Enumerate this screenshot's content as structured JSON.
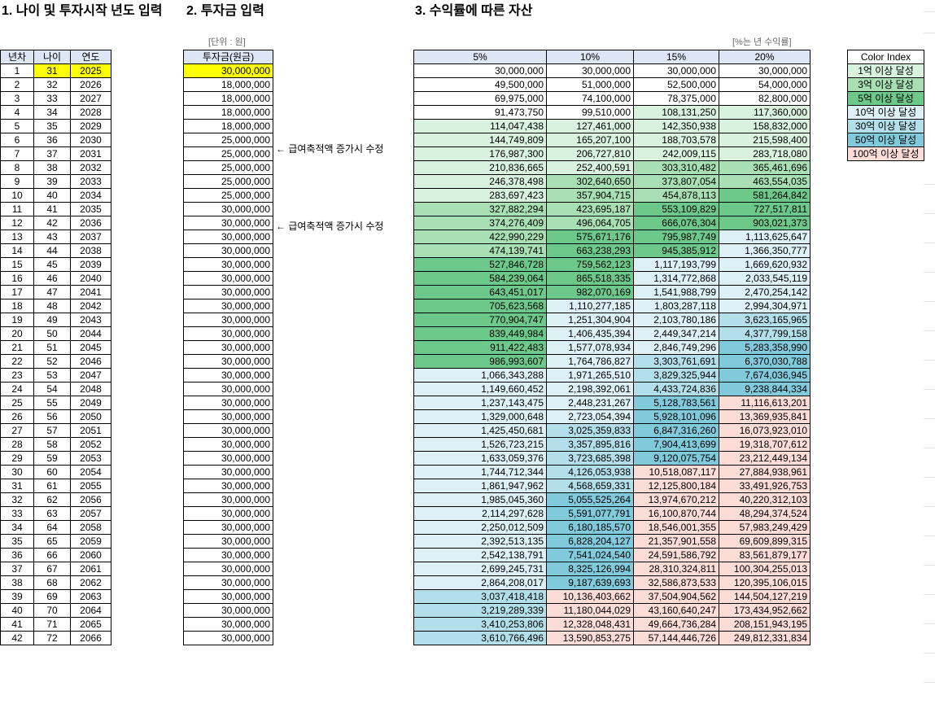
{
  "titles": {
    "age_section": "1. 나이 및 투자시작 년도 입력",
    "invest_section": "2. 투자금 입력",
    "returns_section": "3. 수익률에 따른 자산"
  },
  "units": {
    "invest": "[단위 : 원]",
    "returns": "[%는 년 수익률]"
  },
  "age_table": {
    "headers": [
      "년차",
      "나이",
      "연도"
    ]
  },
  "invest_table": {
    "header": "투자금(원금)"
  },
  "notes": {
    "row6": "← 급여축적액 증가시 수정",
    "row11": "← 급여축적액 증가시 수정"
  },
  "returns_table": {
    "headers": [
      "5%",
      "10%",
      "15%",
      "20%"
    ]
  },
  "legend": {
    "title": "Color Index",
    "items": [
      {
        "label": "1억 이상 달성",
        "color": "#d9f2dd"
      },
      {
        "label": "3억 이상 달성",
        "color": "#a8e0b4"
      },
      {
        "label": "5억 이상 달성",
        "color": "#6dc98a"
      },
      {
        "label": "10억 이상 달성",
        "color": "#ddf0f6"
      },
      {
        "label": "30억 이상 달성",
        "color": "#b2dfea"
      },
      {
        "label": "50억 이상 달성",
        "color": "#80cadc"
      },
      {
        "label": "100억 이상 달성",
        "color": "#fbdcd6"
      }
    ]
  },
  "rows": [
    {
      "year": "1",
      "age": "31",
      "cal": "2025",
      "inv": "30,000,000",
      "r5": "30,000,000",
      "r10": "30,000,000",
      "r15": "30,000,000",
      "r20": "30,000,000"
    },
    {
      "year": "2",
      "age": "32",
      "cal": "2026",
      "inv": "18,000,000",
      "r5": "49,500,000",
      "r10": "51,000,000",
      "r15": "52,500,000",
      "r20": "54,000,000"
    },
    {
      "year": "3",
      "age": "33",
      "cal": "2027",
      "inv": "18,000,000",
      "r5": "69,975,000",
      "r10": "74,100,000",
      "r15": "78,375,000",
      "r20": "82,800,000"
    },
    {
      "year": "4",
      "age": "34",
      "cal": "2028",
      "inv": "18,000,000",
      "r5": "91,473,750",
      "r10": "99,510,000",
      "r15": "108,131,250",
      "r20": "117,360,000"
    },
    {
      "year": "5",
      "age": "35",
      "cal": "2029",
      "inv": "18,000,000",
      "r5": "114,047,438",
      "r10": "127,461,000",
      "r15": "142,350,938",
      "r20": "158,832,000"
    },
    {
      "year": "6",
      "age": "36",
      "cal": "2030",
      "inv": "25,000,000",
      "r5": "144,749,809",
      "r10": "165,207,100",
      "r15": "188,703,578",
      "r20": "215,598,400"
    },
    {
      "year": "7",
      "age": "37",
      "cal": "2031",
      "inv": "25,000,000",
      "r5": "176,987,300",
      "r10": "206,727,810",
      "r15": "242,009,115",
      "r20": "283,718,080"
    },
    {
      "year": "8",
      "age": "38",
      "cal": "2032",
      "inv": "25,000,000",
      "r5": "210,836,665",
      "r10": "252,400,591",
      "r15": "303,310,482",
      "r20": "365,461,696"
    },
    {
      "year": "9",
      "age": "39",
      "cal": "2033",
      "inv": "25,000,000",
      "r5": "246,378,498",
      "r10": "302,640,650",
      "r15": "373,807,054",
      "r20": "463,554,035"
    },
    {
      "year": "10",
      "age": "40",
      "cal": "2034",
      "inv": "25,000,000",
      "r5": "283,697,423",
      "r10": "357,904,715",
      "r15": "454,878,113",
      "r20": "581,264,842"
    },
    {
      "year": "11",
      "age": "41",
      "cal": "2035",
      "inv": "30,000,000",
      "r5": "327,882,294",
      "r10": "423,695,187",
      "r15": "553,109,829",
      "r20": "727,517,811"
    },
    {
      "year": "12",
      "age": "42",
      "cal": "2036",
      "inv": "30,000,000",
      "r5": "374,276,409",
      "r10": "496,064,705",
      "r15": "666,076,304",
      "r20": "903,021,373"
    },
    {
      "year": "13",
      "age": "43",
      "cal": "2037",
      "inv": "30,000,000",
      "r5": "422,990,229",
      "r10": "575,671,176",
      "r15": "795,987,749",
      "r20": "1,113,625,647"
    },
    {
      "year": "14",
      "age": "44",
      "cal": "2038",
      "inv": "30,000,000",
      "r5": "474,139,741",
      "r10": "663,238,293",
      "r15": "945,385,912",
      "r20": "1,366,350,777"
    },
    {
      "year": "15",
      "age": "45",
      "cal": "2039",
      "inv": "30,000,000",
      "r5": "527,846,728",
      "r10": "759,562,123",
      "r15": "1,117,193,799",
      "r20": "1,669,620,932"
    },
    {
      "year": "16",
      "age": "46",
      "cal": "2040",
      "inv": "30,000,000",
      "r5": "584,239,064",
      "r10": "865,518,335",
      "r15": "1,314,772,868",
      "r20": "2,033,545,119"
    },
    {
      "year": "17",
      "age": "47",
      "cal": "2041",
      "inv": "30,000,000",
      "r5": "643,451,017",
      "r10": "982,070,169",
      "r15": "1,541,988,799",
      "r20": "2,470,254,142"
    },
    {
      "year": "18",
      "age": "48",
      "cal": "2042",
      "inv": "30,000,000",
      "r5": "705,623,568",
      "r10": "1,110,277,185",
      "r15": "1,803,287,118",
      "r20": "2,994,304,971"
    },
    {
      "year": "19",
      "age": "49",
      "cal": "2043",
      "inv": "30,000,000",
      "r5": "770,904,747",
      "r10": "1,251,304,904",
      "r15": "2,103,780,186",
      "r20": "3,623,165,965"
    },
    {
      "year": "20",
      "age": "50",
      "cal": "2044",
      "inv": "30,000,000",
      "r5": "839,449,984",
      "r10": "1,406,435,394",
      "r15": "2,449,347,214",
      "r20": "4,377,799,158"
    },
    {
      "year": "21",
      "age": "51",
      "cal": "2045",
      "inv": "30,000,000",
      "r5": "911,422,483",
      "r10": "1,577,078,934",
      "r15": "2,846,749,296",
      "r20": "5,283,358,990"
    },
    {
      "year": "22",
      "age": "52",
      "cal": "2046",
      "inv": "30,000,000",
      "r5": "986,993,607",
      "r10": "1,764,786,827",
      "r15": "3,303,761,691",
      "r20": "6,370,030,788"
    },
    {
      "year": "23",
      "age": "53",
      "cal": "2047",
      "inv": "30,000,000",
      "r5": "1,066,343,288",
      "r10": "1,971,265,510",
      "r15": "3,829,325,944",
      "r20": "7,674,036,945"
    },
    {
      "year": "24",
      "age": "54",
      "cal": "2048",
      "inv": "30,000,000",
      "r5": "1,149,660,452",
      "r10": "2,198,392,061",
      "r15": "4,433,724,836",
      "r20": "9,238,844,334"
    },
    {
      "year": "25",
      "age": "55",
      "cal": "2049",
      "inv": "30,000,000",
      "r5": "1,237,143,475",
      "r10": "2,448,231,267",
      "r15": "5,128,783,561",
      "r20": "11,116,613,201"
    },
    {
      "year": "26",
      "age": "56",
      "cal": "2050",
      "inv": "30,000,000",
      "r5": "1,329,000,648",
      "r10": "2,723,054,394",
      "r15": "5,928,101,096",
      "r20": "13,369,935,841"
    },
    {
      "year": "27",
      "age": "57",
      "cal": "2051",
      "inv": "30,000,000",
      "r5": "1,425,450,681",
      "r10": "3,025,359,833",
      "r15": "6,847,316,260",
      "r20": "16,073,923,010"
    },
    {
      "year": "28",
      "age": "58",
      "cal": "2052",
      "inv": "30,000,000",
      "r5": "1,526,723,215",
      "r10": "3,357,895,816",
      "r15": "7,904,413,699",
      "r20": "19,318,707,612"
    },
    {
      "year": "29",
      "age": "59",
      "cal": "2053",
      "inv": "30,000,000",
      "r5": "1,633,059,376",
      "r10": "3,723,685,398",
      "r15": "9,120,075,754",
      "r20": "23,212,449,134"
    },
    {
      "year": "30",
      "age": "60",
      "cal": "2054",
      "inv": "30,000,000",
      "r5": "1,744,712,344",
      "r10": "4,126,053,938",
      "r15": "10,518,087,117",
      "r20": "27,884,938,961"
    },
    {
      "year": "31",
      "age": "61",
      "cal": "2055",
      "inv": "30,000,000",
      "r5": "1,861,947,962",
      "r10": "4,568,659,331",
      "r15": "12,125,800,184",
      "r20": "33,491,926,753"
    },
    {
      "year": "32",
      "age": "62",
      "cal": "2056",
      "inv": "30,000,000",
      "r5": "1,985,045,360",
      "r10": "5,055,525,264",
      "r15": "13,974,670,212",
      "r20": "40,220,312,103"
    },
    {
      "year": "33",
      "age": "63",
      "cal": "2057",
      "inv": "30,000,000",
      "r5": "2,114,297,628",
      "r10": "5,591,077,791",
      "r15": "16,100,870,744",
      "r20": "48,294,374,524"
    },
    {
      "year": "34",
      "age": "64",
      "cal": "2058",
      "inv": "30,000,000",
      "r5": "2,250,012,509",
      "r10": "6,180,185,570",
      "r15": "18,546,001,355",
      "r20": "57,983,249,429"
    },
    {
      "year": "35",
      "age": "65",
      "cal": "2059",
      "inv": "30,000,000",
      "r5": "2,392,513,135",
      "r10": "6,828,204,127",
      "r15": "21,357,901,558",
      "r20": "69,609,899,315"
    },
    {
      "year": "36",
      "age": "66",
      "cal": "2060",
      "inv": "30,000,000",
      "r5": "2,542,138,791",
      "r10": "7,541,024,540",
      "r15": "24,591,586,792",
      "r20": "83,561,879,177"
    },
    {
      "year": "37",
      "age": "67",
      "cal": "2061",
      "inv": "30,000,000",
      "r5": "2,699,245,731",
      "r10": "8,325,126,994",
      "r15": "28,310,324,811",
      "r20": "100,304,255,013"
    },
    {
      "year": "38",
      "age": "68",
      "cal": "2062",
      "inv": "30,000,000",
      "r5": "2,864,208,017",
      "r10": "9,187,639,693",
      "r15": "32,586,873,533",
      "r20": "120,395,106,015"
    },
    {
      "year": "39",
      "age": "69",
      "cal": "2063",
      "inv": "30,000,000",
      "r5": "3,037,418,418",
      "r10": "10,136,403,662",
      "r15": "37,504,904,562",
      "r20": "144,504,127,219"
    },
    {
      "year": "40",
      "age": "70",
      "cal": "2064",
      "inv": "30,000,000",
      "r5": "3,219,289,339",
      "r10": "11,180,044,029",
      "r15": "43,160,640,247",
      "r20": "173,434,952,662"
    },
    {
      "year": "41",
      "age": "71",
      "cal": "2065",
      "inv": "30,000,000",
      "r5": "3,410,253,806",
      "r10": "12,328,048,431",
      "r15": "49,664,736,284",
      "r20": "208,151,943,195"
    },
    {
      "year": "42",
      "age": "72",
      "cal": "2066",
      "inv": "30,000,000",
      "r5": "3,610,766,496",
      "r10": "13,590,853,275",
      "r15": "57,144,446,726",
      "r20": "249,812,331,834"
    }
  ]
}
